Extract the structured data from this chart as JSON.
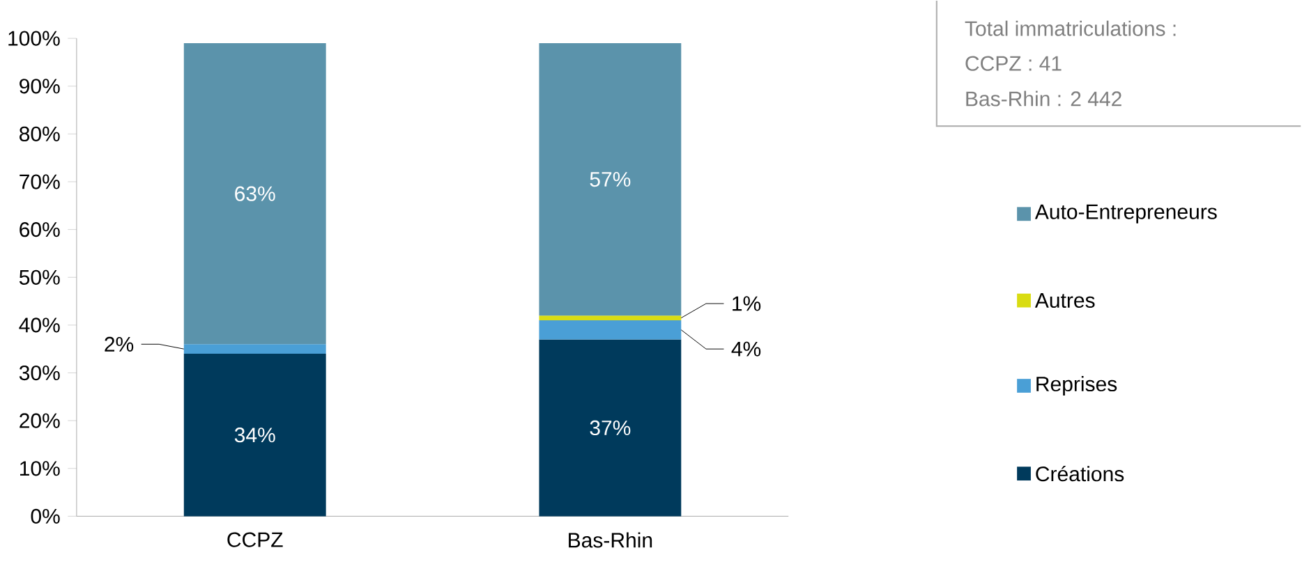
{
  "chart_data": {
    "type": "bar",
    "stacked": true,
    "categories": [
      "CCPZ",
      "Bas-Rhin"
    ],
    "series": [
      {
        "name": "Créations",
        "color": "#003a5c",
        "values": [
          34,
          37
        ],
        "value_labels": [
          "34%",
          "37%"
        ]
      },
      {
        "name": "Reprises",
        "color": "#4a9fd6",
        "values": [
          2,
          4
        ],
        "value_labels": [
          "2%",
          "4%"
        ]
      },
      {
        "name": "Autres",
        "color": "#d9dc12",
        "values": [
          null,
          1
        ],
        "value_labels": [
          null,
          "1%"
        ]
      },
      {
        "name": "Auto-Entrepreneurs",
        "color": "#5b93ab",
        "values": [
          63,
          57
        ],
        "value_labels": [
          "63%",
          "57%"
        ]
      }
    ],
    "ylim": [
      0,
      100
    ],
    "yticks": [
      {
        "value": 0,
        "label": "0%"
      },
      {
        "value": 10,
        "label": "10%"
      },
      {
        "value": 20,
        "label": "20%"
      },
      {
        "value": 30,
        "label": "30%"
      },
      {
        "value": 40,
        "label": "40%"
      },
      {
        "value": 50,
        "label": "50%"
      },
      {
        "value": 60,
        "label": "60%"
      },
      {
        "value": 70,
        "label": "70%"
      },
      {
        "value": 80,
        "label": "80%"
      },
      {
        "value": 90,
        "label": "90%"
      },
      {
        "value": 100,
        "label": "100%"
      }
    ],
    "legend": "right",
    "annotations": [
      "Total immatriculations :",
      "CCPZ : 41",
      "Bas-Rhin : 2 442"
    ]
  }
}
